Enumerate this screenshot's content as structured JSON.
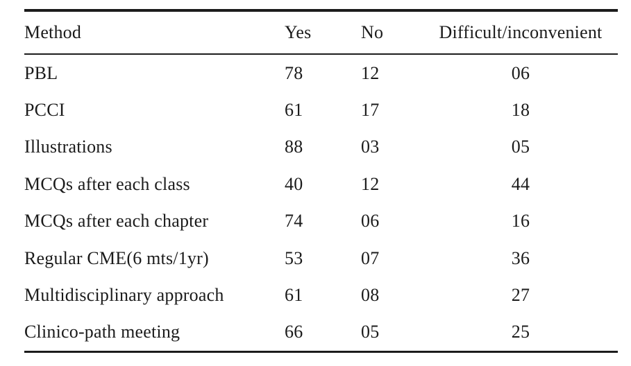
{
  "table": {
    "columns": [
      "Method",
      "Yes",
      "No",
      "Difficult/inconvenient"
    ],
    "rows": [
      {
        "method": "PBL",
        "yes": "78",
        "no": "12",
        "difficult": "06"
      },
      {
        "method": "PCCI",
        "yes": "61",
        "no": "17",
        "difficult": "18"
      },
      {
        "method": "Illustrations",
        "yes": "88",
        "no": "03",
        "difficult": "05"
      },
      {
        "method": "MCQs after each class",
        "yes": "40",
        "no": "12",
        "difficult": "44"
      },
      {
        "method": "MCQs after each chapter",
        "yes": "74",
        "no": "06",
        "difficult": "16"
      },
      {
        "method": "Regular CME(6 mts/1yr)",
        "yes": "53",
        "no": "07",
        "difficult": "36"
      },
      {
        "method": "Multidisciplinary approach",
        "yes": "61",
        "no": "08",
        "difficult": "27"
      },
      {
        "method": "Clinico-path meeting",
        "yes": "66",
        "no": "05",
        "difficult": "25"
      }
    ],
    "colors": {
      "text": "#1b1b1b",
      "rule": "#1c1c1c",
      "background": "#ffffff"
    }
  }
}
